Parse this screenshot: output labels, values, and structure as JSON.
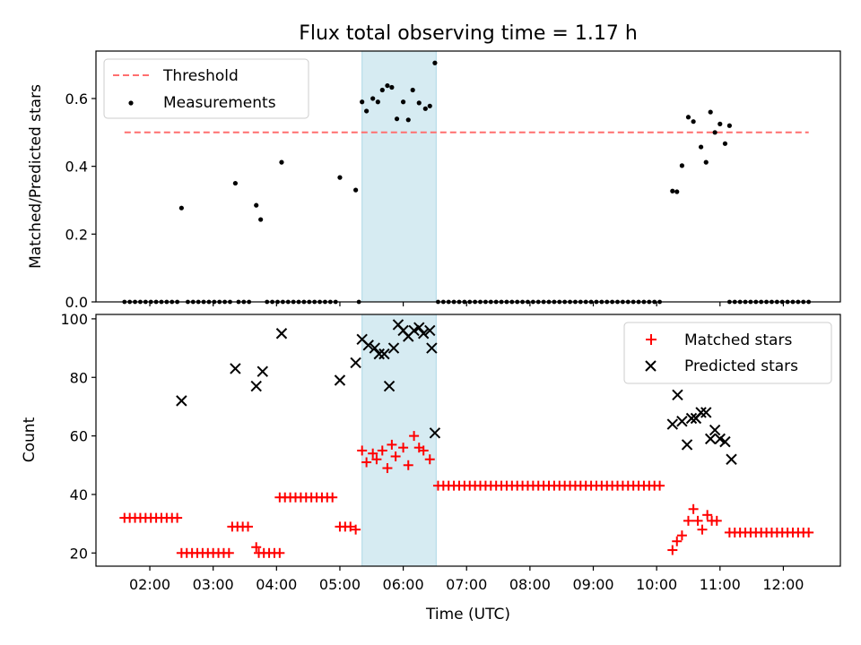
{
  "chart_data": [
    {
      "type": "scatter",
      "title": "Flux total observing time = 1.17 h",
      "ylabel": "Matched/Predicted stars",
      "ylim": [
        0,
        0.74
      ],
      "yticks": [
        0.0,
        0.2,
        0.4,
        0.6
      ],
      "ytick_labels": [
        "0.0",
        "0.2",
        "0.4",
        "0.6"
      ],
      "xlim": [
        1.15,
        12.9
      ],
      "legend": {
        "position": "top-left",
        "threshold_label": "Threshold",
        "measurements_label": "Measurements"
      },
      "threshold": {
        "y": 0.5,
        "x_start": 1.6,
        "x_end": 12.4,
        "color": "#ff6f6f"
      },
      "highlight": {
        "x_start": 5.35,
        "x_end": 6.52,
        "color": "#add8e6"
      },
      "zero_runs": [
        [
          1.6,
          2.45
        ],
        [
          2.6,
          3.3
        ],
        [
          3.4,
          3.62
        ],
        [
          3.85,
          4.05
        ],
        [
          4.1,
          4.95
        ],
        [
          5.3,
          5.3
        ],
        [
          6.55,
          10.1
        ],
        [
          11.15,
          12.4
        ]
      ],
      "zero_step": 0.0833,
      "measurements": [
        [
          2.5,
          0.277
        ],
        [
          3.35,
          0.35
        ],
        [
          3.68,
          0.285
        ],
        [
          3.75,
          0.243
        ],
        [
          4.08,
          0.412
        ],
        [
          5.0,
          0.367
        ],
        [
          5.25,
          0.33
        ],
        [
          5.35,
          0.59
        ],
        [
          5.42,
          0.563
        ],
        [
          5.52,
          0.6
        ],
        [
          5.6,
          0.59
        ],
        [
          5.67,
          0.625
        ],
        [
          5.75,
          0.638
        ],
        [
          5.82,
          0.633
        ],
        [
          5.9,
          0.54
        ],
        [
          6.0,
          0.59
        ],
        [
          6.08,
          0.537
        ],
        [
          6.15,
          0.625
        ],
        [
          6.25,
          0.587
        ],
        [
          6.35,
          0.57
        ],
        [
          6.42,
          0.578
        ],
        [
          6.5,
          0.705
        ],
        [
          10.25,
          0.327
        ],
        [
          10.32,
          0.325
        ],
        [
          10.4,
          0.402
        ],
        [
          10.5,
          0.545
        ],
        [
          10.58,
          0.532
        ],
        [
          10.7,
          0.457
        ],
        [
          10.78,
          0.412
        ],
        [
          10.85,
          0.56
        ],
        [
          10.92,
          0.5
        ],
        [
          11.0,
          0.525
        ],
        [
          11.08,
          0.467
        ],
        [
          11.15,
          0.52
        ]
      ]
    },
    {
      "type": "scatter",
      "xlabel": "Time (UTC)",
      "ylabel": "Count",
      "ylim": [
        15.5,
        101.5
      ],
      "yticks": [
        20,
        40,
        60,
        80,
        100
      ],
      "ytick_labels": [
        "20",
        "40",
        "60",
        "80",
        "100"
      ],
      "xlim": [
        1.15,
        12.9
      ],
      "xticks": [
        2,
        3,
        4,
        5,
        6,
        7,
        8,
        9,
        10,
        11,
        12
      ],
      "xtick_labels": [
        "02:00",
        "03:00",
        "04:00",
        "05:00",
        "06:00",
        "07:00",
        "08:00",
        "09:00",
        "10:00",
        "11:00",
        "12:00"
      ],
      "legend": {
        "position": "top-right",
        "matched_label": "Matched stars",
        "predicted_label": "Predicted stars"
      },
      "highlight": {
        "x_start": 5.35,
        "x_end": 6.52,
        "color": "#add8e6"
      },
      "matched_runs": [
        {
          "x_start": 1.6,
          "x_end": 2.45,
          "y": 32
        },
        {
          "x_start": 2.5,
          "x_end": 3.3,
          "y": 20
        },
        {
          "x_start": 3.3,
          "x_end": 3.6,
          "y": 29
        },
        {
          "x_start": 3.8,
          "x_end": 4.05,
          "y": 20
        },
        {
          "x_start": 4.05,
          "x_end": 4.95,
          "y": 39
        },
        {
          "x_start": 5.0,
          "x_end": 5.2,
          "y": 29
        },
        {
          "x_start": 6.55,
          "x_end": 10.1,
          "y": 43
        },
        {
          "x_start": 11.15,
          "x_end": 12.4,
          "y": 27
        }
      ],
      "matched_step": 0.0833,
      "matched_points": [
        [
          3.68,
          22
        ],
        [
          3.72,
          20
        ],
        [
          5.25,
          28
        ],
        [
          5.35,
          55
        ],
        [
          5.42,
          51
        ],
        [
          5.52,
          54
        ],
        [
          5.58,
          52
        ],
        [
          5.67,
          55
        ],
        [
          5.75,
          49
        ],
        [
          5.82,
          57
        ],
        [
          5.88,
          53
        ],
        [
          6.0,
          56
        ],
        [
          6.08,
          50
        ],
        [
          6.17,
          60
        ],
        [
          6.25,
          56
        ],
        [
          6.32,
          55
        ],
        [
          6.42,
          52
        ],
        [
          10.25,
          21
        ],
        [
          10.32,
          24
        ],
        [
          10.4,
          26
        ],
        [
          10.5,
          31
        ],
        [
          10.58,
          35
        ],
        [
          10.65,
          31
        ],
        [
          10.72,
          28
        ],
        [
          10.8,
          33
        ],
        [
          10.87,
          31
        ],
        [
          10.95,
          31
        ]
      ],
      "predicted_points": [
        [
          2.5,
          72
        ],
        [
          3.35,
          83
        ],
        [
          3.68,
          77
        ],
        [
          3.78,
          82
        ],
        [
          4.08,
          95
        ],
        [
          5.0,
          79
        ],
        [
          5.25,
          85
        ],
        [
          5.35,
          93
        ],
        [
          5.45,
          91
        ],
        [
          5.55,
          90
        ],
        [
          5.62,
          88
        ],
        [
          5.7,
          88
        ],
        [
          5.78,
          77
        ],
        [
          5.85,
          90
        ],
        [
          5.92,
          98
        ],
        [
          6.0,
          96
        ],
        [
          6.08,
          94
        ],
        [
          6.17,
          96
        ],
        [
          6.25,
          97
        ],
        [
          6.32,
          95
        ],
        [
          6.42,
          96
        ],
        [
          6.45,
          90
        ],
        [
          6.5,
          61
        ],
        [
          10.25,
          64
        ],
        [
          10.33,
          74
        ],
        [
          10.4,
          65
        ],
        [
          10.48,
          57
        ],
        [
          10.55,
          66
        ],
        [
          10.62,
          66
        ],
        [
          10.7,
          68
        ],
        [
          10.78,
          68
        ],
        [
          10.85,
          59
        ],
        [
          10.92,
          62
        ],
        [
          11.0,
          59
        ],
        [
          11.08,
          58
        ],
        [
          11.18,
          52
        ]
      ]
    }
  ],
  "colors": {
    "matched": "#ff0000",
    "predicted": "#000000",
    "threshold": "#ff6f6f",
    "highlight": "#add8e6",
    "measurement": "#000000"
  }
}
